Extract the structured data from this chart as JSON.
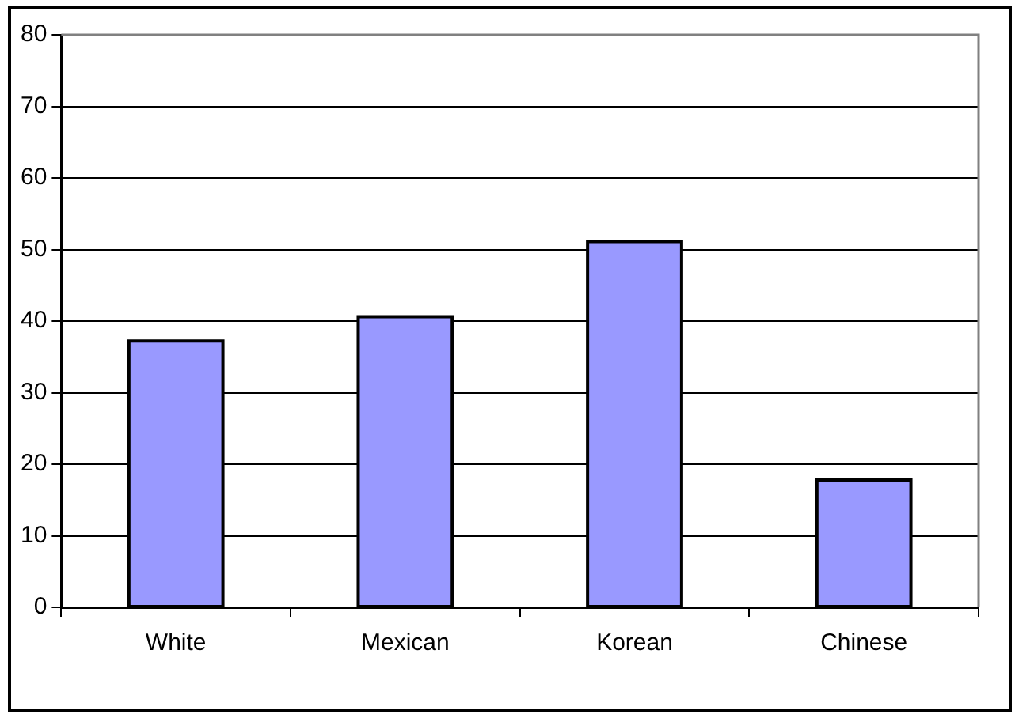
{
  "chart_data": {
    "type": "bar",
    "categories": [
      "White",
      "Mexican",
      "Korean",
      "Chinese"
    ],
    "values": [
      37.2,
      40.6,
      51.1,
      17.8
    ],
    "color": "#9999ff",
    "ylim": [
      0,
      80
    ],
    "yticks": [
      0,
      10,
      20,
      30,
      40,
      50,
      60,
      70,
      80
    ],
    "grid": "y",
    "legend": false
  }
}
